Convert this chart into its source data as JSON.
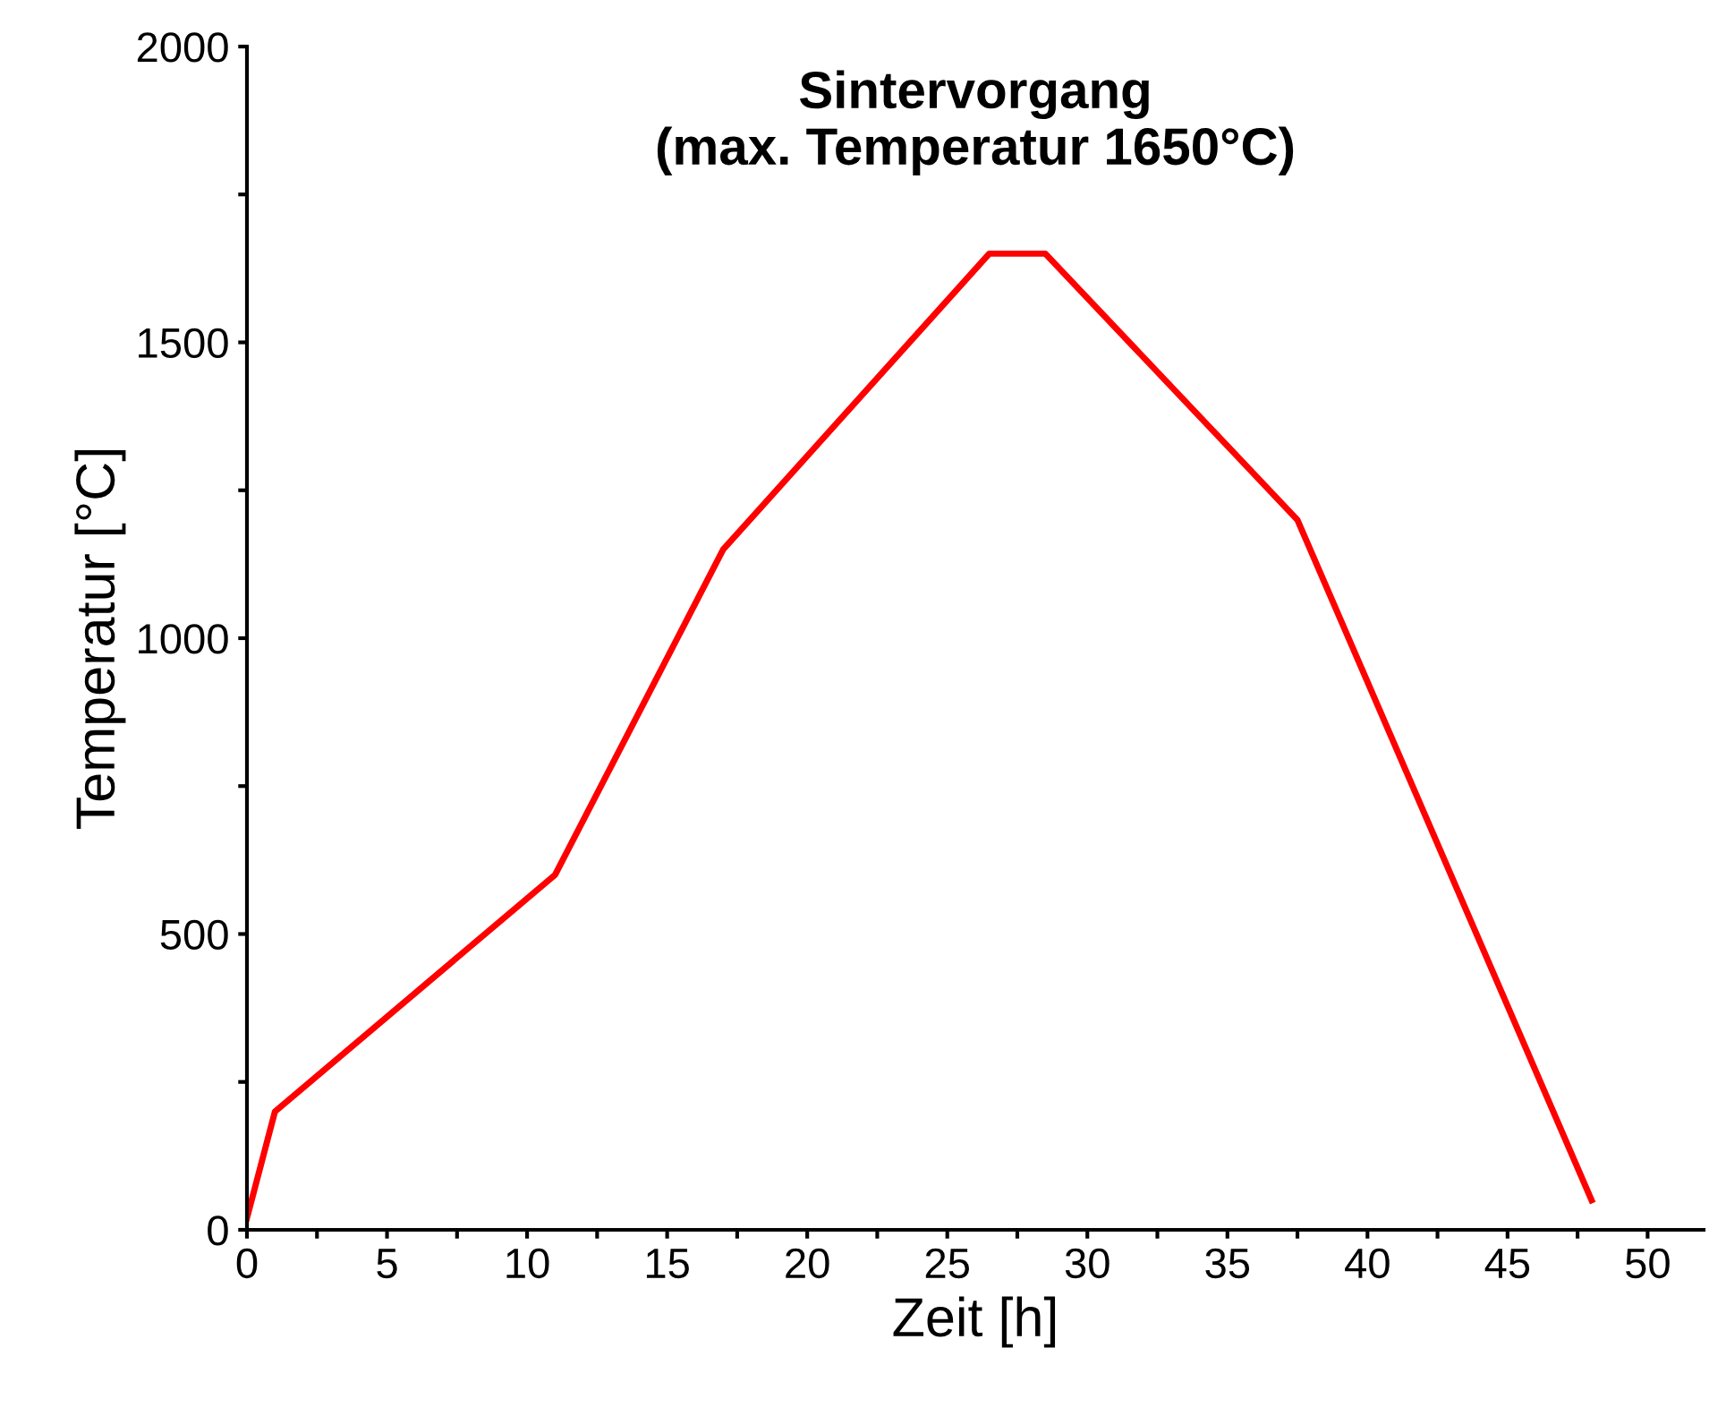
{
  "chart_data": {
    "type": "line",
    "title": "Sintervorgang\n(max. Temperatur 1650°C)",
    "xlabel": "Zeit [h]",
    "ylabel": "Temperatur [°C]",
    "x": [
      0,
      1,
      11,
      17,
      26.5,
      28.5,
      37.5,
      48
    ],
    "series": [
      {
        "color": "#ff0000",
        "values": [
          20,
          200,
          600,
          1150,
          1650,
          1650,
          1200,
          50
        ]
      }
    ],
    "xlim": [
      0,
      52
    ],
    "ylim": [
      0,
      2000
    ],
    "xticks": [
      0,
      {
        "value": 2.5,
        "label": null
      },
      5,
      {
        "value": 7.5,
        "label": null
      },
      10,
      {
        "value": 12.5,
        "label": null
      },
      15,
      {
        "value": 17.5,
        "label": null
      },
      20,
      {
        "value": 22.5,
        "label": null
      },
      25,
      {
        "value": 27.5,
        "label": null
      },
      30,
      {
        "value": 32.5,
        "label": null
      },
      35,
      {
        "value": 37.5,
        "label": null
      },
      40,
      {
        "value": 42.5,
        "label": null
      },
      45,
      {
        "value": 47.5,
        "label": null
      },
      50
    ],
    "yticks": [
      0,
      {
        "value": 250,
        "label": null
      },
      500,
      {
        "value": 750,
        "label": null
      },
      1000,
      {
        "value": 1250,
        "label": null
      },
      1500,
      {
        "value": 1750,
        "label": null
      },
      2000
    ],
    "grid": false,
    "marker": "none",
    "line_style": "solid"
  }
}
